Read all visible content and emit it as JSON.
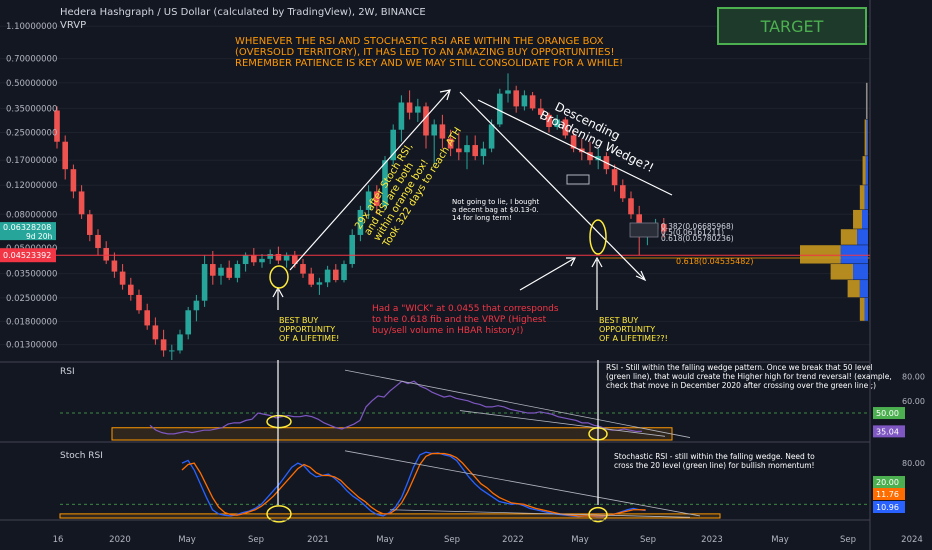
{
  "header": {
    "title": "Hedera Hashgraph / US Dollar (calculated by TradingView), 2W, BINANCE",
    "indicator": "VRVP",
    "target_label": "TARGET"
  },
  "colors": {
    "background": "#131722",
    "up": "#26a69a",
    "down": "#ef5350",
    "annotation_orange": "#ff9800",
    "annotation_red": "#f23645",
    "annotation_yellow": "#ffeb3b",
    "rsi_line": "#7e57c2",
    "stoch_k": "#2962ff",
    "stoch_d": "#ff6d00",
    "target_green": "#4caf50"
  },
  "annotations": {
    "headline": [
      "WHENEVER THE RSI AND STOCHASTIC RSI ARE WITHIN THE ORANGE BOX",
      "(OVERSOLD TERRITORY), IT HAS LED TO AN AMAZING BUY OPPORTUNITIES!",
      "REMEMBER PATIENCE IS KEY AND WE MAY STILL CONSOLIDATE FOR A WHILE!"
    ],
    "rally": [
      "29x after Stoch RSI,",
      "and RSI are both",
      "within orange box!",
      "Took 322 days to reach ATH"
    ],
    "wedge": [
      "Descending",
      "Broadening Wedge?!"
    ],
    "bag": [
      "Not going to lie, I bought",
      "a decent bag at $0.13-0.",
      "14 for long term!"
    ],
    "wick": [
      "Had a \"WICK\" at 0.0455 that corresponds",
      "to the 0.618 fib and the VRVP (Highest",
      "buy/sell volume in HBAR history!)"
    ],
    "buy1": [
      "BEST BUY",
      "OPPORTUNITY",
      "OF A LIFETIME!"
    ],
    "buy2": [
      "BEST BUY",
      "OPPORTUNITY",
      "OF A LIFETIME??!"
    ],
    "rsi_note": [
      "RSI - Still within the falling wedge pattern. Once we break that 50 level",
      "(green line), that would create the Higher high for trend reversal! (example,",
      "check that move in December 2020 after crossing over the green line ;)"
    ],
    "stoch_note": [
      "Stochastic RSI - still within the falling wedge. Need to",
      "cross the 20 level (green line) for bullish momentum!"
    ],
    "fib_labels": [
      "0.382(0.06685968)",
      "0.5(0.06161211)",
      "0.618(0.05780236)"
    ],
    "fib_main": "0.618(0.04535482)"
  },
  "chart_data": [
    {
      "type": "candlestick",
      "title": "Hedera Hashgraph / US Dollar (calculated by TradingView), 2W, BINANCE",
      "scale": "log",
      "ylim": [
        0.0105,
        1.2
      ],
      "y_ticks": [
        "1.10000000",
        "0.70000000",
        "0.50000000",
        "0.35000000",
        "0.25000000",
        "0.17000000",
        "0.12000000",
        "0.08000000",
        "0.05000000",
        "0.03500000",
        "0.02500000",
        "0.01800000",
        "0.01300000"
      ],
      "y_tick_values": [
        1.1,
        0.7,
        0.5,
        0.35,
        0.25,
        0.17,
        0.12,
        0.08,
        0.05,
        0.035,
        0.025,
        0.018,
        0.013
      ],
      "last_price": "0.06328208",
      "countdown": "9d 20h",
      "line_price": "0.04523392",
      "line_price_value": 0.04523392,
      "fib_value": 0.04535482,
      "x_ticks": [
        "16",
        "2020",
        "May",
        "Sep",
        "2021",
        "May",
        "Sep",
        "2022",
        "May",
        "Sep",
        "2023",
        "May",
        "Sep",
        "2024"
      ],
      "candles": [
        [
          0.34,
          0.36,
          0.2,
          0.22
        ],
        [
          0.22,
          0.24,
          0.13,
          0.15
        ],
        [
          0.15,
          0.16,
          0.1,
          0.11
        ],
        [
          0.11,
          0.12,
          0.075,
          0.08
        ],
        [
          0.08,
          0.085,
          0.055,
          0.06
        ],
        [
          0.06,
          0.065,
          0.045,
          0.05
        ],
        [
          0.05,
          0.055,
          0.04,
          0.042
        ],
        [
          0.042,
          0.047,
          0.033,
          0.036
        ],
        [
          0.036,
          0.04,
          0.028,
          0.03
        ],
        [
          0.03,
          0.033,
          0.024,
          0.026
        ],
        [
          0.026,
          0.028,
          0.02,
          0.021
        ],
        [
          0.021,
          0.023,
          0.016,
          0.017
        ],
        [
          0.017,
          0.019,
          0.013,
          0.014
        ],
        [
          0.014,
          0.016,
          0.011,
          0.012
        ],
        [
          0.012,
          0.013,
          0.0105,
          0.012
        ],
        [
          0.012,
          0.016,
          0.0115,
          0.015
        ],
        [
          0.015,
          0.022,
          0.014,
          0.021
        ],
        [
          0.021,
          0.026,
          0.018,
          0.024
        ],
        [
          0.024,
          0.045,
          0.022,
          0.04
        ],
        [
          0.04,
          0.048,
          0.03,
          0.034
        ],
        [
          0.034,
          0.04,
          0.03,
          0.038
        ],
        [
          0.038,
          0.042,
          0.032,
          0.033
        ],
        [
          0.033,
          0.042,
          0.031,
          0.04
        ],
        [
          0.04,
          0.047,
          0.036,
          0.045
        ],
        [
          0.045,
          0.05,
          0.039,
          0.041
        ],
        [
          0.041,
          0.046,
          0.038,
          0.043
        ],
        [
          0.043,
          0.049,
          0.04,
          0.046
        ],
        [
          0.046,
          0.051,
          0.04,
          0.042
        ],
        [
          0.042,
          0.047,
          0.038,
          0.045
        ],
        [
          0.045,
          0.048,
          0.038,
          0.04
        ],
        [
          0.04,
          0.043,
          0.033,
          0.035
        ],
        [
          0.035,
          0.038,
          0.029,
          0.03
        ],
        [
          0.03,
          0.033,
          0.026,
          0.031
        ],
        [
          0.031,
          0.039,
          0.029,
          0.037
        ],
        [
          0.037,
          0.04,
          0.031,
          0.032
        ],
        [
          0.032,
          0.042,
          0.031,
          0.04
        ],
        [
          0.04,
          0.065,
          0.038,
          0.06
        ],
        [
          0.06,
          0.09,
          0.055,
          0.085
        ],
        [
          0.085,
          0.12,
          0.075,
          0.11
        ],
        [
          0.11,
          0.12,
          0.08,
          0.09
        ],
        [
          0.09,
          0.18,
          0.085,
          0.17
        ],
        [
          0.17,
          0.28,
          0.16,
          0.26
        ],
        [
          0.26,
          0.42,
          0.22,
          0.38
        ],
        [
          0.38,
          0.45,
          0.3,
          0.33
        ],
        [
          0.33,
          0.4,
          0.29,
          0.36
        ],
        [
          0.36,
          0.38,
          0.2,
          0.24
        ],
        [
          0.24,
          0.3,
          0.16,
          0.28
        ],
        [
          0.28,
          0.32,
          0.2,
          0.23
        ],
        [
          0.23,
          0.26,
          0.18,
          0.2
        ],
        [
          0.2,
          0.25,
          0.17,
          0.19
        ],
        [
          0.19,
          0.24,
          0.15,
          0.21
        ],
        [
          0.21,
          0.24,
          0.17,
          0.18
        ],
        [
          0.18,
          0.22,
          0.16,
          0.2
        ],
        [
          0.2,
          0.3,
          0.19,
          0.28
        ],
        [
          0.28,
          0.46,
          0.27,
          0.43
        ],
        [
          0.43,
          0.57,
          0.38,
          0.45
        ],
        [
          0.45,
          0.48,
          0.33,
          0.36
        ],
        [
          0.36,
          0.45,
          0.34,
          0.42
        ],
        [
          0.42,
          0.44,
          0.34,
          0.35
        ],
        [
          0.35,
          0.4,
          0.3,
          0.32
        ],
        [
          0.32,
          0.33,
          0.25,
          0.27
        ],
        [
          0.27,
          0.32,
          0.26,
          0.3
        ],
        [
          0.3,
          0.31,
          0.23,
          0.24
        ],
        [
          0.24,
          0.26,
          0.19,
          0.2
        ],
        [
          0.2,
          0.23,
          0.17,
          0.19
        ],
        [
          0.19,
          0.22,
          0.16,
          0.17
        ],
        [
          0.17,
          0.2,
          0.15,
          0.18
        ],
        [
          0.18,
          0.19,
          0.14,
          0.15
        ],
        [
          0.15,
          0.16,
          0.11,
          0.12
        ],
        [
          0.12,
          0.13,
          0.095,
          0.1
        ],
        [
          0.1,
          0.11,
          0.075,
          0.08
        ],
        [
          0.08,
          0.09,
          0.045,
          0.06
        ],
        [
          0.06,
          0.07,
          0.052,
          0.065
        ],
        [
          0.065,
          0.075,
          0.06,
          0.07
        ],
        [
          0.07,
          0.076,
          0.058,
          0.063
        ]
      ],
      "vrvp_bars": [
        {
          "price_low": 0.04,
          "price_high": 0.052,
          "volume": 1.0
        },
        {
          "price_low": 0.032,
          "price_high": 0.04,
          "volume": 0.55
        },
        {
          "price_low": 0.052,
          "price_high": 0.065,
          "volume": 0.4
        },
        {
          "price_low": 0.025,
          "price_high": 0.032,
          "volume": 0.3
        },
        {
          "price_low": 0.065,
          "price_high": 0.085,
          "volume": 0.22
        },
        {
          "price_low": 0.018,
          "price_high": 0.025,
          "volume": 0.12
        },
        {
          "price_low": 0.085,
          "price_high": 0.12,
          "volume": 0.12
        },
        {
          "price_low": 0.12,
          "price_high": 0.18,
          "volume": 0.08
        },
        {
          "price_low": 0.18,
          "price_high": 0.3,
          "volume": 0.05
        },
        {
          "price_low": 0.3,
          "price_high": 0.5,
          "volume": 0.03
        }
      ]
    },
    {
      "type": "line",
      "title": "RSI",
      "ylim": [
        28,
        90
      ],
      "y_ticks": [
        "80.00",
        "60.00"
      ],
      "y_tick_values": [
        80,
        60
      ],
      "badges": [
        {
          "label": "50.00",
          "value": 50,
          "color": "#4caf50"
        },
        {
          "label": "35.04",
          "value": 35.04,
          "color": "#7e57c2"
        }
      ],
      "levels": [
        50
      ],
      "oversold_box": [
        28,
        38
      ],
      "series": [
        {
          "values": [
            40,
            36,
            34,
            33,
            33,
            34,
            35,
            34,
            35,
            36,
            36,
            37,
            38,
            41,
            42,
            42,
            44,
            45,
            50,
            49,
            48,
            46,
            47,
            48,
            47,
            47,
            48,
            47,
            45,
            42,
            40,
            38,
            37,
            39,
            41,
            44,
            55,
            60,
            64,
            63,
            68,
            72,
            76,
            74,
            76,
            72,
            70,
            67,
            65,
            63,
            64,
            62,
            61,
            60,
            58,
            57,
            55,
            55,
            56,
            55,
            53,
            52,
            51,
            50,
            50,
            51,
            50,
            49,
            47,
            46,
            45,
            44,
            42,
            42,
            40,
            39,
            37,
            36,
            36,
            37,
            36,
            35,
            35.04
          ]
        }
      ]
    },
    {
      "type": "line",
      "title": "Stoch RSI",
      "ylim": [
        0,
        105
      ],
      "y_ticks": [
        "80.00"
      ],
      "y_tick_values": [
        80
      ],
      "badges": [
        {
          "label": "20.00",
          "value": 20,
          "color": "#4caf50"
        },
        {
          "label": "11.76",
          "value": 11.76,
          "color": "#ff6d00"
        },
        {
          "label": "10.96",
          "value": 10.96,
          "color": "#2962ff"
        }
      ],
      "levels": [
        20
      ],
      "oversold_box": [
        0,
        6
      ],
      "series": [
        {
          "values": [
            80,
            84,
            70,
            50,
            30,
            12,
            6,
            4,
            3,
            5,
            8,
            10,
            14,
            20,
            30,
            40,
            50,
            62,
            74,
            80,
            76,
            66,
            60,
            62,
            64,
            58,
            50,
            40,
            32,
            26,
            18,
            10,
            5,
            3,
            8,
            16,
            30,
            52,
            75,
            92,
            96,
            94,
            95,
            92,
            90,
            84,
            72,
            60,
            50,
            42,
            36,
            30,
            24,
            22,
            20,
            21,
            18,
            14,
            12,
            10,
            8,
            6,
            5,
            4,
            3,
            2,
            3,
            3,
            2,
            2,
            4,
            6,
            9,
            12,
            14,
            12,
            10.96
          ]
        },
        {
          "values": [
            70,
            78,
            80,
            66,
            48,
            30,
            16,
            8,
            5,
            4,
            6,
            9,
            12,
            17,
            24,
            32,
            42,
            52,
            62,
            72,
            78,
            74,
            66,
            62,
            62,
            60,
            55,
            46,
            38,
            30,
            24,
            16,
            10,
            6,
            6,
            12,
            22,
            38,
            58,
            78,
            90,
            94,
            94,
            94,
            92,
            88,
            80,
            70,
            60,
            50,
            44,
            36,
            30,
            26,
            22,
            21,
            20,
            17,
            14,
            12,
            10,
            8,
            6,
            5,
            4,
            3,
            3,
            3,
            3,
            3,
            4,
            6,
            8,
            10,
            12,
            12,
            11.76
          ]
        }
      ]
    }
  ]
}
